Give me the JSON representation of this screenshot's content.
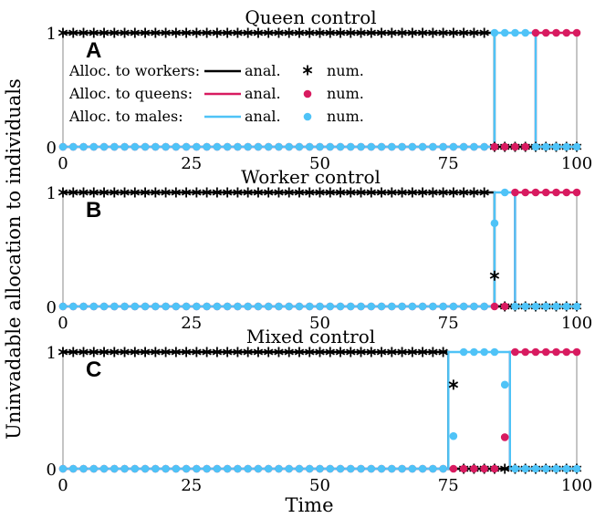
{
  "figure": {
    "ylabel": "Uninvadable allocation to individuals",
    "xlabel": "Time"
  },
  "legend": {
    "entries": [
      {
        "label": "Alloc. to workers:",
        "line_label": "anal.",
        "marker_label": "num.",
        "color": "#000000",
        "marker": "star"
      },
      {
        "label": "Alloc. to queens:",
        "line_label": "anal.",
        "marker_label": "num.",
        "color": "#d81b60",
        "marker": "dot"
      },
      {
        "label": "Alloc. to males:",
        "line_label": "anal.",
        "marker_label": "num.",
        "color": "#4fc3f7",
        "marker": "dot"
      }
    ]
  },
  "colors": {
    "workers": "#000000",
    "queens": "#d81b60",
    "males": "#4fc3f7",
    "frame": "#9e9e9e"
  },
  "chart_data": [
    {
      "type": "line",
      "letter": "A",
      "title": "Queen control",
      "xlim": [
        0,
        100
      ],
      "ylim": [
        0,
        1
      ],
      "xticks": [
        "0",
        "25",
        "50",
        "75",
        "100"
      ],
      "yticks": [
        "0",
        "1"
      ],
      "switch_times": [
        84,
        92
      ],
      "analytic": {
        "workers": [
          [
            0,
            1
          ],
          [
            84,
            1
          ],
          [
            84,
            0
          ],
          [
            100,
            0
          ]
        ],
        "queens": [
          [
            0,
            0
          ],
          [
            92,
            0
          ],
          [
            92,
            1
          ],
          [
            100,
            1
          ]
        ],
        "males": [
          [
            0,
            0
          ],
          [
            84,
            0
          ],
          [
            84,
            1
          ],
          [
            92,
            1
          ],
          [
            92,
            0
          ],
          [
            100,
            0
          ]
        ]
      },
      "numeric_x": [
        0,
        2,
        4,
        6,
        8,
        10,
        12,
        14,
        16,
        18,
        20,
        22,
        24,
        26,
        28,
        30,
        32,
        34,
        36,
        38,
        40,
        42,
        44,
        46,
        48,
        50,
        52,
        54,
        56,
        58,
        60,
        62,
        64,
        66,
        68,
        70,
        72,
        74,
        76,
        78,
        80,
        82,
        84,
        86,
        88,
        90,
        92,
        94,
        96,
        98,
        100
      ],
      "numeric": {
        "workers": [
          1,
          1,
          1,
          1,
          1,
          1,
          1,
          1,
          1,
          1,
          1,
          1,
          1,
          1,
          1,
          1,
          1,
          1,
          1,
          1,
          1,
          1,
          1,
          1,
          1,
          1,
          1,
          1,
          1,
          1,
          1,
          1,
          1,
          1,
          1,
          1,
          1,
          1,
          1,
          1,
          1,
          1,
          0,
          0,
          0,
          0,
          0,
          0,
          0,
          0,
          0
        ],
        "queens": [
          0,
          0,
          0,
          0,
          0,
          0,
          0,
          0,
          0,
          0,
          0,
          0,
          0,
          0,
          0,
          0,
          0,
          0,
          0,
          0,
          0,
          0,
          0,
          0,
          0,
          0,
          0,
          0,
          0,
          0,
          0,
          0,
          0,
          0,
          0,
          0,
          0,
          0,
          0,
          0,
          0,
          0,
          0,
          0,
          0,
          0,
          1,
          1,
          1,
          1,
          1
        ],
        "males": [
          0,
          0,
          0,
          0,
          0,
          0,
          0,
          0,
          0,
          0,
          0,
          0,
          0,
          0,
          0,
          0,
          0,
          0,
          0,
          0,
          0,
          0,
          0,
          0,
          0,
          0,
          0,
          0,
          0,
          0,
          0,
          0,
          0,
          0,
          0,
          0,
          0,
          0,
          0,
          0,
          0,
          0,
          1,
          1,
          1,
          1,
          0,
          0,
          0,
          0,
          0
        ]
      }
    },
    {
      "type": "line",
      "letter": "B",
      "title": "Worker control",
      "xlim": [
        0,
        100
      ],
      "ylim": [
        0,
        1
      ],
      "xticks": [
        "0",
        "25",
        "50",
        "75",
        "100"
      ],
      "yticks": [
        "0",
        "1"
      ],
      "switch_times": [
        84,
        88
      ],
      "analytic": {
        "workers": [
          [
            0,
            1
          ],
          [
            84,
            1
          ],
          [
            84,
            0
          ],
          [
            100,
            0
          ]
        ],
        "queens": [
          [
            0,
            0
          ],
          [
            88,
            0
          ],
          [
            88,
            1
          ],
          [
            100,
            1
          ]
        ],
        "males": [
          [
            0,
            0
          ],
          [
            84,
            0
          ],
          [
            84,
            1
          ],
          [
            88,
            1
          ],
          [
            88,
            0
          ],
          [
            100,
            0
          ]
        ]
      },
      "numeric_x": [
        0,
        2,
        4,
        6,
        8,
        10,
        12,
        14,
        16,
        18,
        20,
        22,
        24,
        26,
        28,
        30,
        32,
        34,
        36,
        38,
        40,
        42,
        44,
        46,
        48,
        50,
        52,
        54,
        56,
        58,
        60,
        62,
        64,
        66,
        68,
        70,
        72,
        74,
        76,
        78,
        80,
        82,
        84,
        86,
        88,
        90,
        92,
        94,
        96,
        98,
        100
      ],
      "numeric": {
        "workers": [
          1,
          1,
          1,
          1,
          1,
          1,
          1,
          1,
          1,
          1,
          1,
          1,
          1,
          1,
          1,
          1,
          1,
          1,
          1,
          1,
          1,
          1,
          1,
          1,
          1,
          1,
          1,
          1,
          1,
          1,
          1,
          1,
          1,
          1,
          1,
          1,
          1,
          1,
          1,
          1,
          1,
          1,
          0.27,
          0,
          0,
          0,
          0,
          0,
          0,
          0,
          0
        ],
        "queens": [
          0,
          0,
          0,
          0,
          0,
          0,
          0,
          0,
          0,
          0,
          0,
          0,
          0,
          0,
          0,
          0,
          0,
          0,
          0,
          0,
          0,
          0,
          0,
          0,
          0,
          0,
          0,
          0,
          0,
          0,
          0,
          0,
          0,
          0,
          0,
          0,
          0,
          0,
          0,
          0,
          0,
          0,
          0,
          0,
          1,
          1,
          1,
          1,
          1,
          1,
          1
        ],
        "males": [
          0,
          0,
          0,
          0,
          0,
          0,
          0,
          0,
          0,
          0,
          0,
          0,
          0,
          0,
          0,
          0,
          0,
          0,
          0,
          0,
          0,
          0,
          0,
          0,
          0,
          0,
          0,
          0,
          0,
          0,
          0,
          0,
          0,
          0,
          0,
          0,
          0,
          0,
          0,
          0,
          0,
          0,
          0.73,
          1,
          0,
          0,
          0,
          0,
          0,
          0,
          0
        ]
      }
    },
    {
      "type": "line",
      "letter": "C",
      "title": "Mixed control",
      "xlim": [
        0,
        100
      ],
      "ylim": [
        0,
        1
      ],
      "xticks": [
        "0",
        "25",
        "50",
        "75",
        "100"
      ],
      "yticks": [
        "0",
        "1"
      ],
      "switch_times": [
        75,
        87
      ],
      "analytic": {
        "workers": [
          [
            0,
            1
          ],
          [
            75,
            1
          ],
          [
            75,
            0
          ],
          [
            100,
            0
          ]
        ],
        "queens": [
          [
            0,
            0
          ],
          [
            87,
            0
          ],
          [
            87,
            1
          ],
          [
            100,
            1
          ]
        ],
        "males": [
          [
            0,
            0
          ],
          [
            75,
            0
          ],
          [
            75,
            1
          ],
          [
            87,
            1
          ],
          [
            87,
            0
          ],
          [
            100,
            0
          ]
        ]
      },
      "numeric_x": [
        0,
        2,
        4,
        6,
        8,
        10,
        12,
        14,
        16,
        18,
        20,
        22,
        24,
        26,
        28,
        30,
        32,
        34,
        36,
        38,
        40,
        42,
        44,
        46,
        48,
        50,
        52,
        54,
        56,
        58,
        60,
        62,
        64,
        66,
        68,
        70,
        72,
        74,
        76,
        78,
        80,
        82,
        84,
        86,
        88,
        90,
        92,
        94,
        96,
        98,
        100
      ],
      "numeric": {
        "workers": [
          1,
          1,
          1,
          1,
          1,
          1,
          1,
          1,
          1,
          1,
          1,
          1,
          1,
          1,
          1,
          1,
          1,
          1,
          1,
          1,
          1,
          1,
          1,
          1,
          1,
          1,
          1,
          1,
          1,
          1,
          1,
          1,
          1,
          1,
          1,
          1,
          1,
          1,
          0.72,
          0,
          0,
          0,
          0,
          0,
          0,
          0,
          0,
          0,
          0,
          0,
          0
        ],
        "queens": [
          0,
          0,
          0,
          0,
          0,
          0,
          0,
          0,
          0,
          0,
          0,
          0,
          0,
          0,
          0,
          0,
          0,
          0,
          0,
          0,
          0,
          0,
          0,
          0,
          0,
          0,
          0,
          0,
          0,
          0,
          0,
          0,
          0,
          0,
          0,
          0,
          0,
          0,
          0,
          0,
          0,
          0,
          0,
          0.27,
          1,
          1,
          1,
          1,
          1,
          1,
          1
        ],
        "males": [
          0,
          0,
          0,
          0,
          0,
          0,
          0,
          0,
          0,
          0,
          0,
          0,
          0,
          0,
          0,
          0,
          0,
          0,
          0,
          0,
          0,
          0,
          0,
          0,
          0,
          0,
          0,
          0,
          0,
          0,
          0,
          0,
          0,
          0,
          0,
          0,
          0,
          0,
          0.28,
          1,
          1,
          1,
          1,
          0.72,
          0,
          0,
          0,
          0,
          0,
          0,
          0
        ]
      }
    }
  ]
}
